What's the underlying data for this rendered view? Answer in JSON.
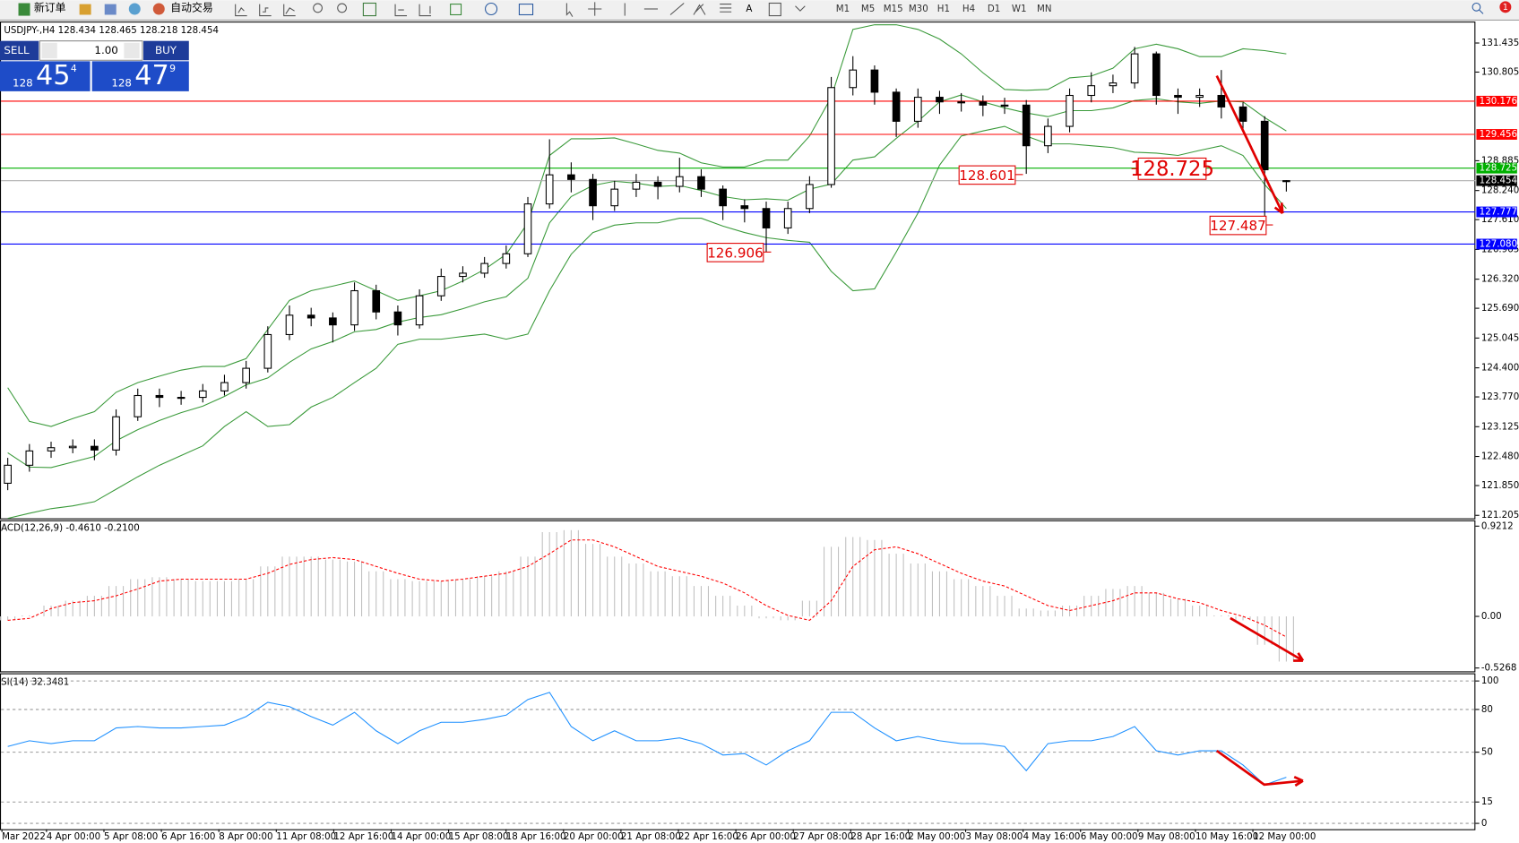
{
  "toolbar": {
    "new_order": "新订单",
    "auto_trading": "自动交易",
    "timeframes": [
      "M1",
      "M5",
      "M15",
      "M30",
      "H1",
      "H4",
      "D1",
      "W1",
      "MN"
    ],
    "notifications": "1"
  },
  "trade_panel": {
    "sell": "SELL",
    "buy": "BUY",
    "lot": "1.00",
    "bid": {
      "small": "128",
      "big": "45",
      "pip": "4"
    },
    "ask": {
      "small": "128",
      "big": "47",
      "pip": "9"
    }
  },
  "chart_data": [
    {
      "type": "candlestick",
      "title": "USDJPY-,H4 128.434 128.465 128.218 128.454",
      "open": [
        121.9,
        122.29,
        122.6,
        122.67,
        122.7,
        122.62,
        123.34,
        123.8,
        123.76,
        123.76,
        123.9,
        124.08,
        124.39,
        125.12,
        125.54,
        125.48,
        125.33,
        126.07,
        125.61,
        125.33,
        125.96,
        126.38,
        126.45,
        126.66,
        126.87,
        127.95,
        128.58,
        128.48,
        127.91,
        128.27,
        128.42,
        128.33,
        128.54,
        128.27,
        127.91,
        127.85,
        127.43,
        127.85,
        128.37,
        130.47,
        130.85,
        130.37,
        129.74,
        130.26,
        130.16,
        130.16,
        130.09,
        130.09,
        129.21,
        129.63,
        130.3,
        130.51,
        130.57,
        131.2,
        130.3,
        130.26,
        130.3,
        130.05,
        129.74,
        128.434
      ],
      "high": [
        122.45,
        122.75,
        122.8,
        122.85,
        122.85,
        123.5,
        123.95,
        123.95,
        123.9,
        124.05,
        124.25,
        124.55,
        125.3,
        125.75,
        125.7,
        125.6,
        126.25,
        126.2,
        125.75,
        126.1,
        126.55,
        126.6,
        126.8,
        127.05,
        128.1,
        129.35,
        128.85,
        128.6,
        128.45,
        128.6,
        128.55,
        128.95,
        128.7,
        128.35,
        128.05,
        128.0,
        128.0,
        128.55,
        130.7,
        131.15,
        130.95,
        130.45,
        130.45,
        130.4,
        130.35,
        130.3,
        130.25,
        130.2,
        129.8,
        130.45,
        130.8,
        130.75,
        131.35,
        131.25,
        130.45,
        130.45,
        130.85,
        130.15,
        129.85,
        128.465
      ],
      "low": [
        121.75,
        122.15,
        122.45,
        122.55,
        122.4,
        122.5,
        123.25,
        123.55,
        123.6,
        123.65,
        123.8,
        123.95,
        124.3,
        125.0,
        125.3,
        124.95,
        125.2,
        125.45,
        125.1,
        125.25,
        125.85,
        126.25,
        126.35,
        126.55,
        126.8,
        127.85,
        128.2,
        127.6,
        127.8,
        128.1,
        128.05,
        128.2,
        128.1,
        127.6,
        127.55,
        126.906,
        127.3,
        127.75,
        128.3,
        130.3,
        130.1,
        129.4,
        129.6,
        129.9,
        129.95,
        129.85,
        129.9,
        128.601,
        129.05,
        129.5,
        130.15,
        130.35,
        130.45,
        130.1,
        129.9,
        130.05,
        129.8,
        129.5,
        127.487,
        128.218
      ],
      "close": [
        122.29,
        122.6,
        122.67,
        122.7,
        122.62,
        123.34,
        123.8,
        123.76,
        123.76,
        123.9,
        124.08,
        124.39,
        125.12,
        125.54,
        125.48,
        125.33,
        126.07,
        125.61,
        125.33,
        125.96,
        126.38,
        126.45,
        126.66,
        126.87,
        127.95,
        128.58,
        128.48,
        127.91,
        128.27,
        128.42,
        128.33,
        128.54,
        128.27,
        127.91,
        127.85,
        127.43,
        127.85,
        128.37,
        130.47,
        130.85,
        130.37,
        129.74,
        130.26,
        130.16,
        130.16,
        130.09,
        130.09,
        129.21,
        129.63,
        130.3,
        130.51,
        130.57,
        131.2,
        130.3,
        130.26,
        130.3,
        130.05,
        129.74,
        128.69,
        128.454
      ],
      "bands": {
        "color": "#3a9a3a",
        "upper": [
          123.97,
          123.24,
          123.13,
          123.3,
          123.45,
          123.87,
          124.08,
          124.22,
          124.35,
          124.43,
          124.43,
          124.6,
          125.23,
          125.86,
          126.07,
          126.17,
          126.28,
          126.07,
          125.86,
          125.96,
          126.07,
          126.28,
          126.53,
          126.86,
          127.54,
          129.0,
          129.36,
          129.36,
          129.38,
          129.25,
          129.11,
          129.05,
          128.84,
          128.75,
          128.75,
          128.9,
          128.9,
          129.42,
          130.26,
          131.73,
          131.83,
          131.83,
          131.73,
          131.52,
          131.2,
          130.79,
          130.43,
          130.41,
          130.43,
          130.68,
          130.72,
          130.89,
          131.31,
          131.41,
          131.31,
          131.14,
          131.14,
          131.31,
          131.27,
          131.2
        ],
        "middle": [
          122.56,
          122.25,
          122.24,
          122.36,
          122.48,
          122.82,
          123.06,
          123.26,
          123.43,
          123.57,
          123.78,
          124.03,
          124.18,
          124.52,
          124.81,
          124.97,
          125.18,
          125.23,
          125.39,
          125.49,
          125.55,
          125.68,
          125.83,
          125.94,
          126.34,
          127.54,
          128.11,
          128.35,
          128.44,
          128.4,
          128.33,
          128.35,
          128.24,
          128.11,
          128.04,
          128.06,
          128.03,
          128.27,
          128.38,
          128.9,
          128.97,
          129.37,
          129.74,
          130.16,
          130.31,
          130.16,
          130.03,
          129.92,
          129.84,
          129.97,
          129.97,
          130.03,
          130.19,
          130.23,
          130.16,
          130.13,
          130.18,
          130.16,
          129.82,
          129.53
        ],
        "lower": [
          121.14,
          121.25,
          121.35,
          121.41,
          121.5,
          121.77,
          122.04,
          122.29,
          122.5,
          122.71,
          123.13,
          123.45,
          123.13,
          123.17,
          123.55,
          123.76,
          124.08,
          124.39,
          124.91,
          125.02,
          125.02,
          125.08,
          125.13,
          125.02,
          125.13,
          126.07,
          126.86,
          127.33,
          127.49,
          127.54,
          127.54,
          127.64,
          127.64,
          127.47,
          127.33,
          127.22,
          127.16,
          127.12,
          126.49,
          126.07,
          126.11,
          126.91,
          127.75,
          128.79,
          129.42,
          129.53,
          129.63,
          129.42,
          129.25,
          129.25,
          129.21,
          129.17,
          129.07,
          129.05,
          129.0,
          129.11,
          129.21,
          129.0,
          128.37,
          127.85
        ]
      },
      "ylim": [
        121.14,
        131.9
      ],
      "yticks": [
        131.435,
        130.805,
        128.885,
        {
          "value": 128.24,
          "label": "128.240"
        },
        {
          "value": 127.61,
          "label": "127.610"
        },
        126.965,
        {
          "value": 126.32,
          "label": "126.320"
        },
        {
          "value": 125.69,
          "label": "125.690"
        },
        125.045,
        {
          "value": 124.4,
          "label": "124.400"
        },
        {
          "value": 123.77,
          "label": "123.770"
        },
        123.125,
        {
          "value": 122.48,
          "label": "122.480"
        },
        {
          "value": 121.85,
          "label": "121.850"
        },
        121.205
      ],
      "levels": [
        {
          "value": 130.176,
          "color": "#ff0000"
        },
        {
          "value": 129.456,
          "color": "#ff0000"
        },
        {
          "value": 128.725,
          "color": "#00b000"
        },
        {
          "value": 128.454,
          "color": "#000000"
        },
        {
          "value": 127.777,
          "color": "#0000ff"
        },
        {
          "value": 127.08,
          "label": "127.080",
          "color": "#0000ff"
        }
      ],
      "annotations": [
        "128.601",
        "128.725",
        "126.906",
        "127.487"
      ]
    },
    {
      "type": "macd",
      "title": "ACD(12,26,9) -0.4610 -0.2100",
      "histogram": {
        "color": "#c0c0c0",
        "values": [
          -0.04,
          0.01,
          0.11,
          0.16,
          0.21,
          0.31,
          0.38,
          0.4,
          0.38,
          0.36,
          0.36,
          0.38,
          0.51,
          0.61,
          0.61,
          0.58,
          0.56,
          0.46,
          0.38,
          0.36,
          0.36,
          0.38,
          0.41,
          0.46,
          0.61,
          0.86,
          0.88,
          0.74,
          0.61,
          0.54,
          0.46,
          0.41,
          0.31,
          0.21,
          0.11,
          -0.02,
          -0.04,
          0.16,
          0.71,
          0.81,
          0.78,
          0.64,
          0.54,
          0.46,
          0.38,
          0.31,
          0.21,
          0.08,
          0.06,
          0.11,
          0.21,
          0.28,
          0.31,
          0.24,
          0.18,
          0.11,
          0.01,
          -0.04,
          -0.29,
          -0.461
        ]
      },
      "signal": {
        "color": "#ff0000",
        "values": [
          -0.04,
          -0.02,
          0.08,
          0.14,
          0.16,
          0.21,
          0.28,
          0.36,
          0.38,
          0.38,
          0.38,
          0.38,
          0.44,
          0.53,
          0.58,
          0.6,
          0.58,
          0.51,
          0.44,
          0.38,
          0.36,
          0.38,
          0.41,
          0.44,
          0.51,
          0.64,
          0.78,
          0.78,
          0.71,
          0.61,
          0.51,
          0.46,
          0.41,
          0.34,
          0.24,
          0.11,
          0.01,
          -0.04,
          0.16,
          0.51,
          0.68,
          0.71,
          0.64,
          0.54,
          0.44,
          0.36,
          0.31,
          0.21,
          0.11,
          0.06,
          0.11,
          0.16,
          0.24,
          0.24,
          0.18,
          0.14,
          0.06,
          0.0,
          -0.09,
          -0.21
        ]
      },
      "ylim": [
        -0.561,
        0.981
      ],
      "yticks": [
        0.9212,
        {
          "value": 0,
          "label": "0.00"
        },
        -0.5268
      ]
    },
    {
      "type": "rsi",
      "title": "SI(14) 32.3481",
      "color": "#1e90ff",
      "grid": true,
      "values": [
        54,
        58,
        56,
        58,
        58,
        67,
        68,
        67,
        67,
        68,
        69,
        75,
        85,
        82,
        75,
        69,
        78,
        65,
        56,
        65,
        71,
        71,
        73,
        76,
        87,
        92,
        68,
        58,
        65,
        58,
        58,
        60,
        56,
        48,
        49,
        41,
        51,
        58,
        78,
        78,
        67,
        58,
        61,
        58,
        56,
        56,
        54,
        37,
        56,
        58,
        58,
        61,
        68,
        51,
        48,
        51,
        51,
        41,
        27,
        32.3481
      ],
      "ylim": [
        -4.1,
        105.4
      ],
      "yticks": [
        100,
        80,
        50,
        15,
        0
      ],
      "x_labels": [
        "Mar 2022",
        "4 Apr 00:00",
        "5 Apr 08:00",
        "6 Apr 16:00",
        "8 Apr 00:00",
        "11 Apr 08:00",
        "12 Apr 16:00",
        "14 Apr 00:00",
        "15 Apr 08:00",
        "18 Apr 16:00",
        "20 Apr 00:00",
        "21 Apr 08:00",
        "22 Apr 16:00",
        "26 Apr 00:00",
        "27 Apr 08:00",
        "28 Apr 16:00",
        "2 May 00:00",
        "3 May 08:00",
        "4 May 16:00",
        "6 May 00:00",
        "9 May 08:00",
        "10 May 16:00",
        "12 May 00:00"
      ]
    }
  ]
}
